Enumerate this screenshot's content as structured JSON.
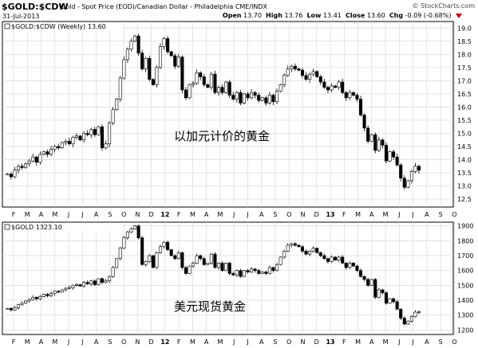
{
  "header": {
    "symbol": "$GOLD:$CDW",
    "description": "Gold - Spot Price (EOD)/Canadian Dollar - Philadelphia  CME/INDX",
    "site": "© StockCharts.com",
    "date": "31-Jul-2013",
    "open_label": "Open",
    "open": "13.70",
    "high_label": "High",
    "high": "13.76",
    "low_label": "Low",
    "low": "13.41",
    "close_label": "Close",
    "close": "13.60",
    "chg_label": "Chg",
    "chg": "-0.09 (-0.68%)",
    "chg_icon": "down-triangle-icon"
  },
  "colors": {
    "up_candle_fill": "#ffffff",
    "down_candle_fill": "#000000",
    "grid": "#d8d8d8",
    "frame": "#000000",
    "down_arrow": "#c0001a"
  },
  "chart_data": [
    {
      "type": "candlestick",
      "legend": "$GOLD:$CDW (Weekly) 13.60",
      "annotation": "以加元计价的黄金",
      "y_ticks": [
        12.5,
        13.0,
        13.5,
        14.0,
        14.5,
        15.0,
        15.5,
        16.0,
        16.5,
        17.0,
        17.5,
        18.0,
        18.5,
        19.0
      ],
      "ylim": [
        12.2,
        19.25
      ],
      "grid": true,
      "x_tick_labels": [
        "F",
        "M",
        "A",
        "M",
        "J",
        "J",
        "A",
        "S",
        "O",
        "N",
        "D",
        "12",
        "F",
        "M",
        "A",
        "M",
        "J",
        "J",
        "A",
        "S",
        "O",
        "N",
        "D",
        "13",
        "F",
        "M",
        "A",
        "M",
        "J",
        "J",
        "A",
        "S",
        "O"
      ],
      "weekly_close": [
        13.45,
        13.35,
        13.6,
        13.75,
        13.7,
        13.85,
        13.95,
        14.1,
        13.9,
        14.2,
        14.3,
        14.2,
        14.4,
        14.5,
        14.45,
        14.65,
        14.7,
        14.6,
        14.85,
        14.9,
        14.75,
        15.0,
        14.95,
        15.15,
        14.95,
        15.25,
        14.45,
        14.6,
        15.4,
        15.9,
        16.3,
        17.1,
        17.8,
        18.2,
        18.5,
        18.7,
        18.05,
        17.45,
        17.85,
        17.05,
        16.85,
        17.5,
        18.3,
        18.6,
        18.1,
        17.95,
        17.55,
        17.9,
        16.65,
        16.35,
        16.85,
        16.9,
        17.3,
        17.15,
        16.85,
        16.75,
        17.25,
        16.55,
        16.75,
        16.55,
        16.95,
        16.45,
        16.3,
        16.55,
        16.15,
        16.5,
        16.35,
        16.55,
        16.45,
        16.25,
        16.35,
        16.15,
        16.45,
        16.2,
        16.6,
        16.85,
        17.2,
        17.45,
        17.55,
        17.45,
        17.4,
        17.2,
        17.05,
        17.25,
        17.35,
        17.15,
        16.95,
        16.75,
        16.65,
        16.8,
        16.75,
        16.95,
        16.55,
        16.35,
        16.55,
        16.45,
        16.3,
        15.7,
        15.2,
        14.7,
        14.95,
        14.35,
        14.75,
        14.55,
        13.95,
        14.3,
        14.1,
        13.8,
        13.3,
        12.95,
        13.2,
        13.55,
        13.75,
        13.6
      ]
    },
    {
      "type": "candlestick",
      "legend": "$GOLD 1323.10",
      "annotation": "美元现货黄金",
      "y_ticks": [
        1200,
        1300,
        1400,
        1500,
        1600,
        1700,
        1800,
        1900
      ],
      "ylim": [
        1170,
        1925
      ],
      "grid": true,
      "x_tick_labels": [
        "F",
        "M",
        "A",
        "M",
        "J",
        "J",
        "A",
        "S",
        "O",
        "N",
        "D",
        "12",
        "F",
        "M",
        "A",
        "M",
        "J",
        "J",
        "A",
        "S",
        "O",
        "N",
        "D",
        "13",
        "F",
        "M",
        "A",
        "M",
        "J",
        "J",
        "A",
        "S",
        "O"
      ],
      "weekly_close": [
        1345,
        1335,
        1350,
        1370,
        1380,
        1395,
        1405,
        1420,
        1410,
        1425,
        1440,
        1430,
        1445,
        1460,
        1455,
        1470,
        1480,
        1485,
        1500,
        1505,
        1495,
        1520,
        1510,
        1530,
        1505,
        1545,
        1520,
        1530,
        1560,
        1620,
        1680,
        1750,
        1820,
        1860,
        1880,
        1900,
        1820,
        1640,
        1660,
        1700,
        1620,
        1720,
        1760,
        1790,
        1740,
        1700,
        1680,
        1720,
        1620,
        1580,
        1630,
        1650,
        1700,
        1680,
        1640,
        1650,
        1710,
        1620,
        1650,
        1600,
        1650,
        1580,
        1570,
        1600,
        1560,
        1600,
        1590,
        1610,
        1600,
        1580,
        1590,
        1580,
        1620,
        1600,
        1640,
        1690,
        1730,
        1770,
        1780,
        1770,
        1760,
        1730,
        1710,
        1730,
        1750,
        1720,
        1700,
        1680,
        1660,
        1690,
        1670,
        1690,
        1650,
        1620,
        1650,
        1630,
        1600,
        1560,
        1540,
        1500,
        1540,
        1420,
        1470,
        1450,
        1380,
        1410,
        1390,
        1340,
        1280,
        1240,
        1260,
        1290,
        1320,
        1323
      ]
    }
  ]
}
